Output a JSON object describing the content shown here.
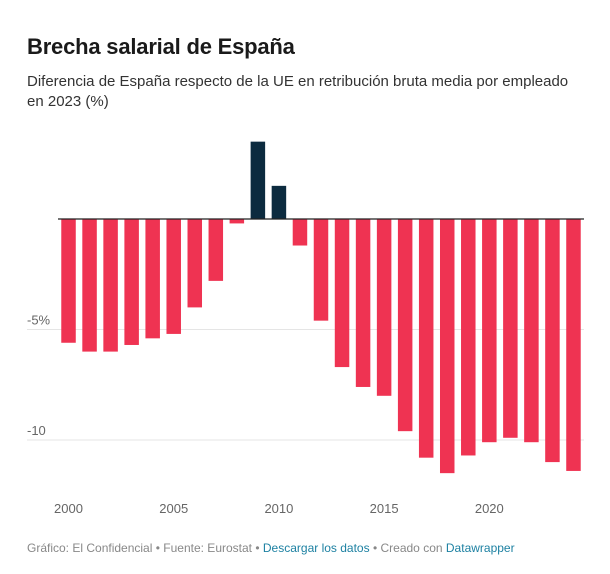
{
  "chart_data": {
    "type": "bar",
    "title": "Brecha salarial de España",
    "subtitle": "Diferencia de España respecto de la UE en retribución bruta media por empleado en 2023 (%)",
    "x": [
      2000,
      2001,
      2002,
      2003,
      2004,
      2005,
      2006,
      2007,
      2008,
      2009,
      2010,
      2011,
      2012,
      2013,
      2014,
      2015,
      2016,
      2017,
      2018,
      2019,
      2020,
      2021,
      2022,
      2023,
      2024
    ],
    "values": [
      -5.6,
      -6.0,
      -6.0,
      -5.7,
      -5.4,
      -5.2,
      -4.0,
      -2.8,
      -0.2,
      3.5,
      1.5,
      -1.2,
      -4.6,
      -6.7,
      -7.6,
      -8.0,
      -9.6,
      -10.8,
      -11.5,
      -10.7,
      -10.1,
      -9.9,
      -10.1,
      -11.0,
      -11.4
    ],
    "x_tick_labels": [
      "2000",
      "2005",
      "2010",
      "2015",
      "2020"
    ],
    "y_tick_labels": [
      "-5%",
      "-10"
    ],
    "y_ticks": [
      -5,
      -10
    ],
    "ylim": [
      -12,
      4
    ],
    "grid": true,
    "colors": {
      "negative": "#ef3352",
      "positive": "#0c2b3f",
      "grid": "#e5e5e5",
      "baseline": "#222222",
      "tick_text": "#666666"
    }
  },
  "footer": {
    "credit": "Gráfico: El Confidencial",
    "source": "Fuente: Eurostat",
    "download_label": "Descargar los datos",
    "created_with": "Creado con",
    "tool": "Datawrapper",
    "separator": "•"
  }
}
